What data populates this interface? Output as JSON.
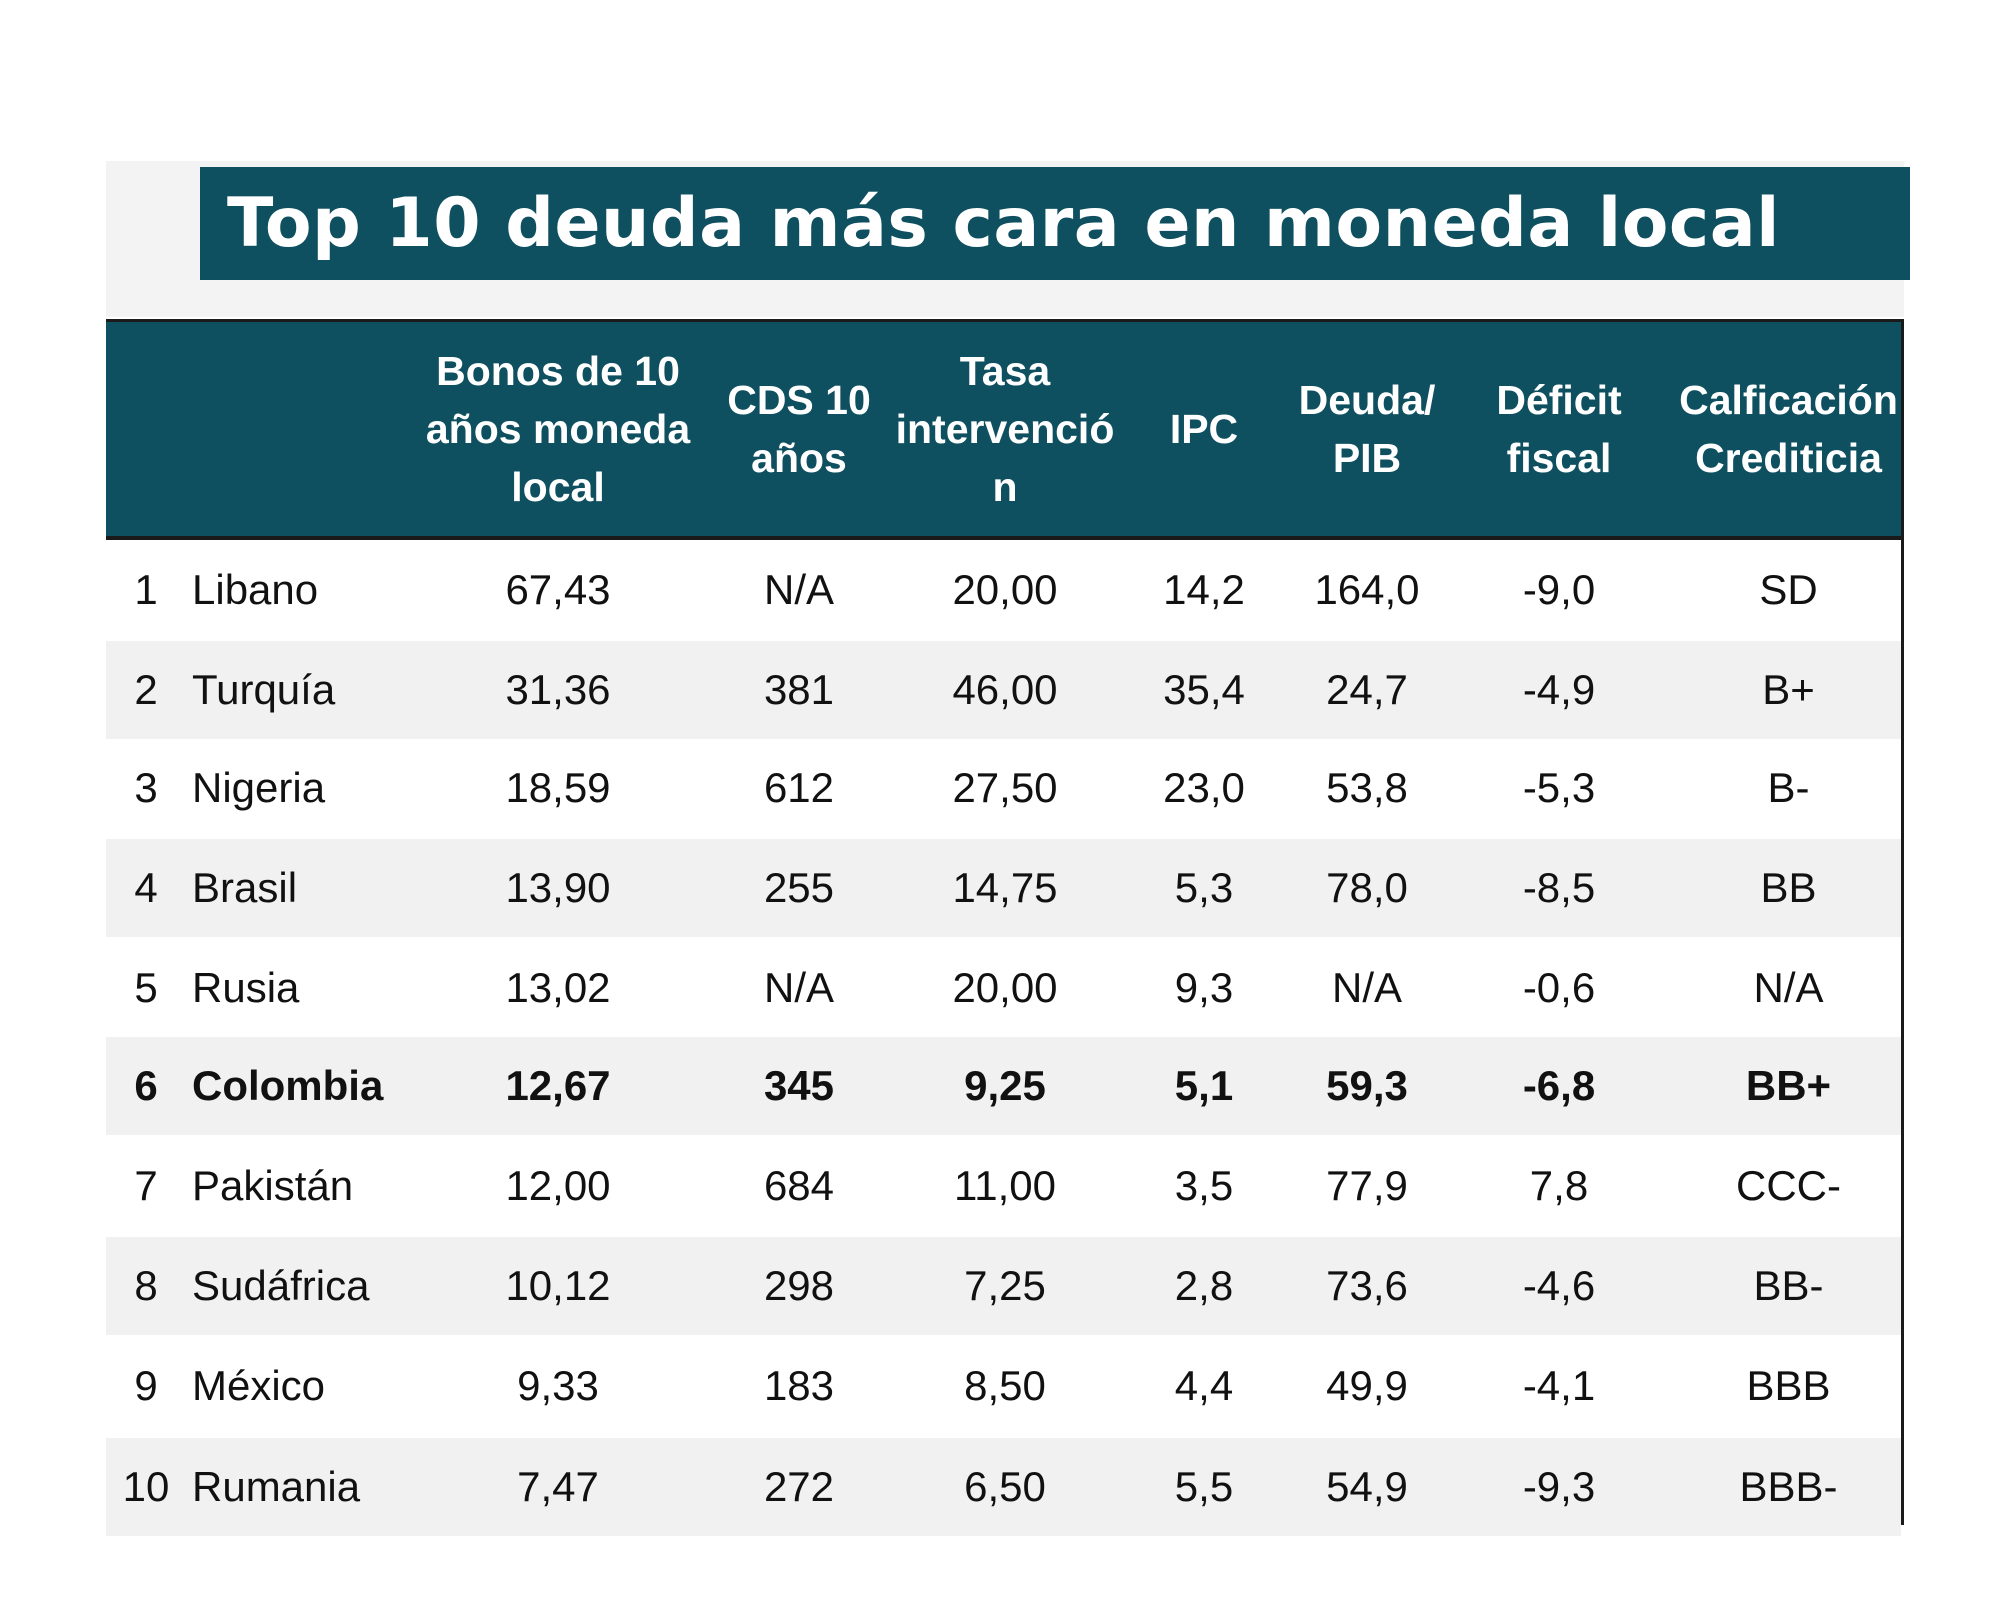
{
  "title": "Top 10  deuda más cara en moneda local",
  "table": {
    "headers": {
      "bonos": [
        "Bonos de 10",
        "años moneda",
        "local"
      ],
      "cds": [
        "CDS 10",
        "años"
      ],
      "tasa": [
        "Tasa",
        "intervenció",
        "n"
      ],
      "ipc": [
        "IPC"
      ],
      "deuda": [
        "Deuda/",
        "PIB"
      ],
      "deficit": [
        "Déficit",
        "fiscal"
      ],
      "calificacion": [
        "Calficación",
        "Crediticia"
      ]
    },
    "rows": [
      {
        "rank": "1",
        "country": "Libano",
        "bonos": "67,43",
        "cds": "N/A",
        "tasa": "20,00",
        "ipc": "14,2",
        "deuda": "164,0",
        "deficit": "-9,0",
        "calificacion": "SD"
      },
      {
        "rank": "2",
        "country": "Turquía",
        "bonos": "31,36",
        "cds": "381",
        "tasa": "46,00",
        "ipc": "35,4",
        "deuda": "24,7",
        "deficit": "-4,9",
        "calificacion": "B+"
      },
      {
        "rank": "3",
        "country": "Nigeria",
        "bonos": "18,59",
        "cds": "612",
        "tasa": "27,50",
        "ipc": "23,0",
        "deuda": "53,8",
        "deficit": "-5,3",
        "calificacion": "B-"
      },
      {
        "rank": "4",
        "country": "Brasil",
        "bonos": "13,90",
        "cds": "255",
        "tasa": "14,75",
        "ipc": "5,3",
        "deuda": "78,0",
        "deficit": "-8,5",
        "calificacion": "BB"
      },
      {
        "rank": "5",
        "country": "Rusia",
        "bonos": "13,02",
        "cds": "N/A",
        "tasa": "20,00",
        "ipc": "9,3",
        "deuda": "N/A",
        "deficit": "-0,6",
        "calificacion": "N/A"
      },
      {
        "rank": "6",
        "country": "Colombia",
        "bonos": "12,67",
        "cds": "345",
        "tasa": "9,25",
        "ipc": "5,1",
        "deuda": "59,3",
        "deficit": "-6,8",
        "calificacion": "BB+"
      },
      {
        "rank": "7",
        "country": "Pakistán",
        "bonos": "12,00",
        "cds": "684",
        "tasa": "11,00",
        "ipc": "3,5",
        "deuda": "77,9",
        "deficit": "7,8",
        "calificacion": "CCC-"
      },
      {
        "rank": "8",
        "country": "Sudáfrica",
        "bonos": "10,12",
        "cds": "298",
        "tasa": "7,25",
        "ipc": "2,8",
        "deuda": "73,6",
        "deficit": "-4,6",
        "calificacion": "BB-"
      },
      {
        "rank": "9",
        "country": "México",
        "bonos": "9,33",
        "cds": "183",
        "tasa": "8,50",
        "ipc": "4,4",
        "deuda": "49,9",
        "deficit": "-4,1",
        "calificacion": "BBB"
      },
      {
        "rank": "10",
        "country": "Rumania",
        "bonos": "7,47",
        "cds": "272",
        "tasa": "6,50",
        "ipc": "5,5",
        "deuda": "54,9",
        "deficit": "-9,3",
        "calificacion": "BBB-"
      }
    ]
  }
}
